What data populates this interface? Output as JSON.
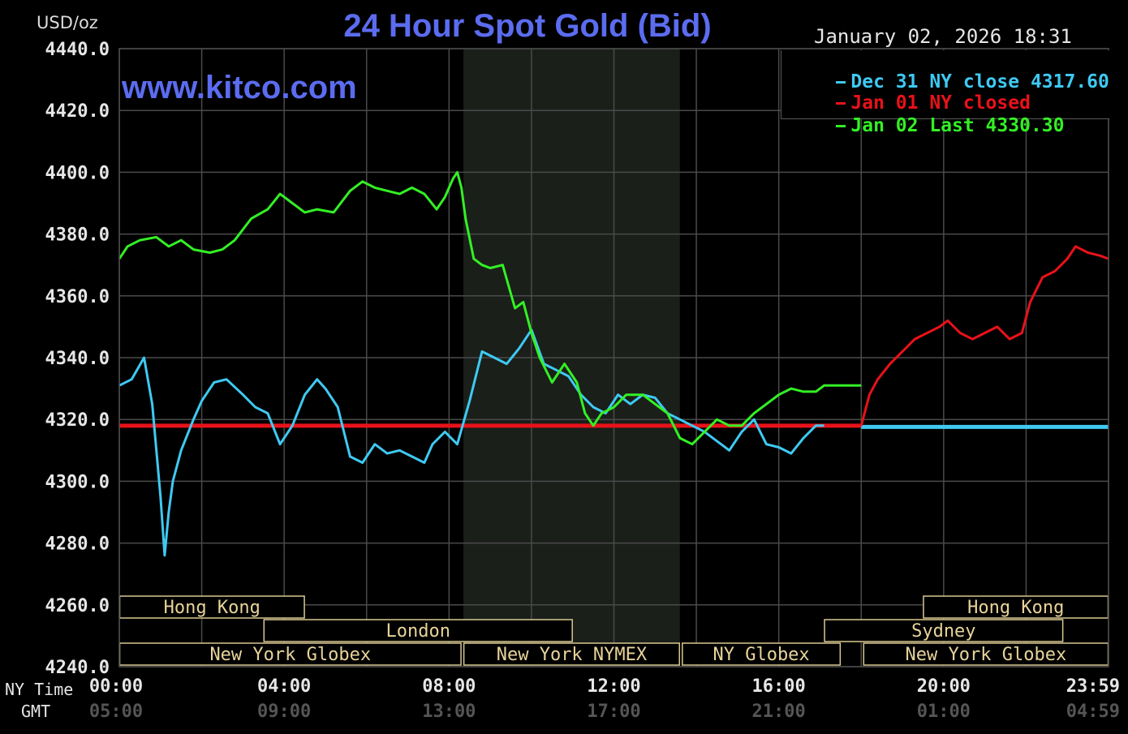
{
  "header": {
    "title": "24 Hour Spot Gold (Bid)",
    "unit": "USD/oz",
    "date": "January 02, 2026 18:31",
    "watermark": "www.kitco.com"
  },
  "legend": [
    {
      "text": "Dec 31 NY close 4317.60",
      "color": "#3fc9f2"
    },
    {
      "text": "Jan 01 NY closed",
      "color": "#e8121a"
    },
    {
      "text": "Jan 02 Last 4330.30",
      "color": "#33f024"
    }
  ],
  "axis_labels": {
    "ny_time": "NY Time",
    "gmt": "GMT"
  },
  "sessions": [
    {
      "label": "Hong Kong",
      "from": 0,
      "to": 4.5,
      "row": 0
    },
    {
      "label": "London",
      "from": 3.5,
      "to": 11.0,
      "row": 1
    },
    {
      "label": "New York Globex",
      "from": 0,
      "to": 8.3,
      "row": 2
    },
    {
      "label": "New York NYMEX",
      "from": 8.35,
      "to": 13.6,
      "row": 2
    },
    {
      "label": "NY Globex",
      "from": 13.65,
      "to": 17.5,
      "row": 2
    },
    {
      "label": "Hong Kong",
      "from": 19.5,
      "to": 24,
      "row": 0
    },
    {
      "label": "Sydney",
      "from": 17.1,
      "to": 22.9,
      "row": 1
    },
    {
      "label": "New York Globex",
      "from": 18.05,
      "to": 24,
      "row": 2
    }
  ],
  "colors": {
    "background": "#000000",
    "grid": "#4a4a4a",
    "shade": "#1a1f1a",
    "session_border": "#d9c890",
    "session_text": "#e8d49a",
    "axis_text": "#e6e6e6",
    "gmt_text": "#555555"
  },
  "chart_data": {
    "type": "line",
    "title": "24 Hour Spot Gold (Bid)",
    "ylabel": "USD/oz",
    "xlabel": "NY Time",
    "ylim": [
      4240,
      4440
    ],
    "xlim": [
      0,
      24
    ],
    "y_ticks": [
      "4440.0",
      "4420.0",
      "4400.0",
      "4380.0",
      "4360.0",
      "4340.0",
      "4320.0",
      "4300.0",
      "4280.0",
      "4260.0",
      "4240.0"
    ],
    "x_ticks": [
      {
        "ny": "00:00",
        "gmt": "05:00",
        "hour": 0
      },
      {
        "ny": "04:00",
        "gmt": "09:00",
        "hour": 4
      },
      {
        "ny": "08:00",
        "gmt": "13:00",
        "hour": 8
      },
      {
        "ny": "12:00",
        "gmt": "17:00",
        "hour": 12
      },
      {
        "ny": "16:00",
        "gmt": "21:00",
        "hour": 16
      },
      {
        "ny": "20:00",
        "gmt": "01:00",
        "hour": 20
      },
      {
        "ny": "23:59",
        "gmt": "04:59",
        "hour": 24
      }
    ],
    "shaded_region": [
      8.35,
      13.6
    ],
    "grid": true,
    "legend_position": "top-right",
    "series": [
      {
        "name": "Dec 31 NY close 4317.60",
        "color": "#3fc9f2",
        "x": [
          0,
          0.3,
          0.6,
          0.8,
          1.0,
          1.1,
          1.2,
          1.3,
          1.5,
          1.8,
          2.0,
          2.3,
          2.6,
          3.0,
          3.3,
          3.6,
          3.9,
          4.2,
          4.5,
          4.8,
          5.0,
          5.3,
          5.6,
          5.9,
          6.2,
          6.5,
          6.8,
          7.1,
          7.4,
          7.6,
          7.9,
          8.2,
          8.5,
          8.8,
          9.1,
          9.4,
          9.7,
          10.0,
          10.3,
          10.6,
          10.9,
          11.2,
          11.5,
          11.8,
          12.1,
          12.4,
          12.7,
          13.0,
          13.3,
          13.6,
          13.9,
          14.2,
          14.5,
          14.8,
          15.1,
          15.4,
          15.7,
          16.0,
          16.3,
          16.6,
          16.9,
          17.1
        ],
        "y": [
          4331,
          4333,
          4340,
          4325,
          4295,
          4276,
          4290,
          4300,
          4310,
          4320,
          4326,
          4332,
          4333,
          4328,
          4324,
          4322,
          4312,
          4318,
          4328,
          4333,
          4330,
          4324,
          4308,
          4306,
          4312,
          4309,
          4310,
          4308,
          4306,
          4312,
          4316,
          4312,
          4326,
          4342,
          4340,
          4338,
          4343,
          4349,
          4338,
          4336,
          4334,
          4328,
          4324,
          4322,
          4328,
          4325,
          4328,
          4327,
          4322,
          4320,
          4318,
          4316,
          4313,
          4310,
          4316,
          4320,
          4312,
          4311,
          4309,
          4314,
          4318,
          4318
        ]
      },
      {
        "name": "Jan 02 Last 4330.30",
        "color": "#33f024",
        "x": [
          0,
          0.2,
          0.5,
          0.9,
          1.2,
          1.5,
          1.8,
          2.2,
          2.5,
          2.8,
          3.2,
          3.6,
          3.9,
          4.2,
          4.5,
          4.8,
          5.2,
          5.6,
          5.9,
          6.2,
          6.5,
          6.8,
          7.1,
          7.4,
          7.7,
          7.9,
          8.1,
          8.2,
          8.3,
          8.4,
          8.6,
          8.8,
          9.0,
          9.3,
          9.6,
          9.8,
          10.0,
          10.2,
          10.5,
          10.8,
          11.1,
          11.3,
          11.5,
          11.7,
          12.0,
          12.3,
          12.7,
          13.0,
          13.3,
          13.6,
          13.9,
          14.2,
          14.5,
          14.8,
          15.1,
          15.4,
          15.7,
          16.0,
          16.3,
          16.6,
          16.9,
          17.1,
          17.4,
          17.7,
          18.0
        ],
        "y": [
          4372,
          4376,
          4378,
          4379,
          4376,
          4378,
          4375,
          4374,
          4375,
          4378,
          4385,
          4388,
          4393,
          4390,
          4387,
          4388,
          4387,
          4394,
          4397,
          4395,
          4394,
          4393,
          4395,
          4393,
          4388,
          4392,
          4398,
          4400,
          4395,
          4385,
          4372,
          4370,
          4369,
          4370,
          4356,
          4358,
          4348,
          4340,
          4332,
          4338,
          4332,
          4322,
          4318,
          4322,
          4324,
          4328,
          4328,
          4325,
          4322,
          4314,
          4312,
          4316,
          4320,
          4318,
          4318,
          4322,
          4325,
          4328,
          4330,
          4329,
          4329,
          4331,
          4331,
          4331,
          4331
        ]
      },
      {
        "name": "Jan 01 NY closed",
        "color": "#e8121a",
        "x": [
          18.0,
          18.2,
          18.4,
          18.7,
          19.0,
          19.3,
          19.6,
          19.9,
          20.1,
          20.4,
          20.7,
          21.0,
          21.3,
          21.6,
          21.9,
          22.1,
          22.4,
          22.7,
          23.0,
          23.2,
          23.5,
          23.8,
          24.0
        ],
        "y": [
          4318,
          4328,
          4333,
          4338,
          4342,
          4346,
          4348,
          4350,
          4352,
          4348,
          4346,
          4348,
          4350,
          4346,
          4348,
          4358,
          4366,
          4368,
          4372,
          4376,
          4374,
          4373,
          4372
        ]
      }
    ],
    "reference_lines": [
      {
        "name": "Jan 01 NY closed",
        "y": 4318.0,
        "from": 0,
        "to": 18.0,
        "color": "#e8121a"
      },
      {
        "name": "Dec 31 NY close 4317.60",
        "y": 4317.6,
        "from": 18.0,
        "to": 24,
        "color": "#3fc9f2"
      }
    ]
  }
}
